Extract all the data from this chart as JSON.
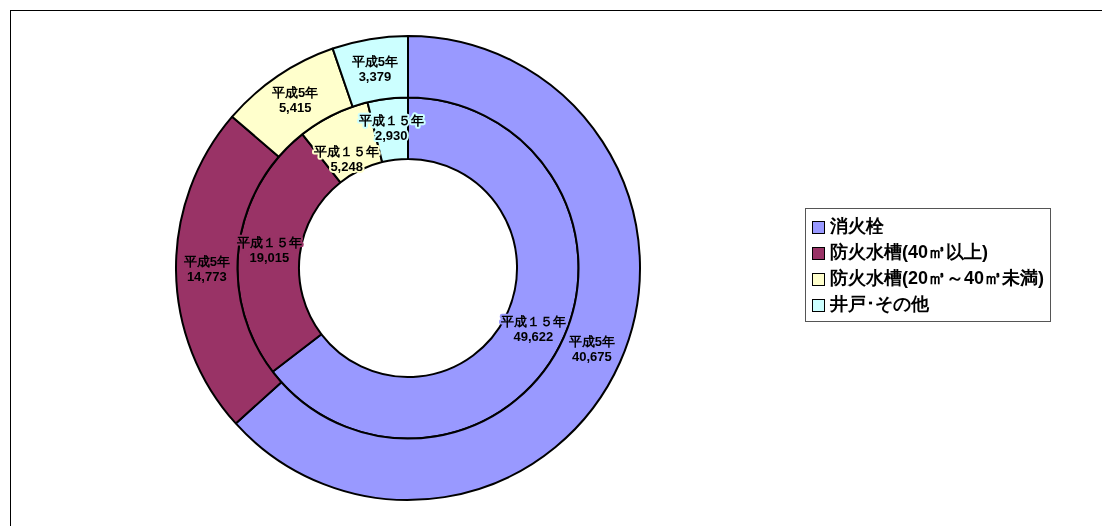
{
  "chart_data": {
    "type": "donut",
    "categories": [
      "消火栓",
      "防火水槽(40㎥以上)",
      "防火水槽(20㎥～40㎥未満)",
      "井戸･その他"
    ],
    "colors": [
      "#9999ff",
      "#993366",
      "#ffffcc",
      "#ccffff"
    ],
    "series": [
      {
        "name": "平成5年",
        "values": [
          40675,
          14773,
          5415,
          3379
        ],
        "value_labels": [
          "40,675",
          "14,773",
          "5,415",
          "3,379"
        ]
      },
      {
        "name": "平成１５年",
        "values": [
          49622,
          19015,
          5248,
          2930
        ],
        "value_labels": [
          "49,622",
          "19,015",
          "5,248",
          "2,930"
        ]
      }
    ],
    "legend": "right"
  }
}
